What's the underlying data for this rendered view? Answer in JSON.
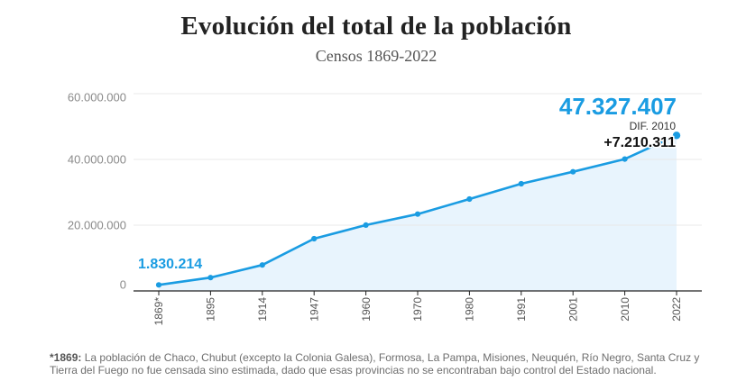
{
  "chart_data": {
    "type": "area",
    "title": "Evolución del total de la población",
    "subtitle": "Censos 1869-2022",
    "categories": [
      "1869*",
      "1895",
      "1914",
      "1947",
      "1960",
      "1970",
      "1980",
      "1991",
      "2001",
      "2010",
      "2022"
    ],
    "values": [
      1830214,
      4044911,
      7903662,
      15893827,
      20013793,
      23364431,
      27949480,
      32615528,
      36260130,
      40117096,
      47327407
    ],
    "ylim": [
      0,
      60000000
    ],
    "yticks": [
      0,
      20000000,
      40000000,
      60000000
    ],
    "ytick_labels": [
      "0",
      "20.000.000",
      "40.000.000",
      "60.000.000"
    ],
    "grid": true,
    "annotations": {
      "first_value": "1.830.214",
      "last_value": "47.327.407",
      "diff_label": "DIF. 2010",
      "diff_value": "+7.210.311"
    }
  },
  "footnote": {
    "label": "*1869:",
    "text": "La población de Chaco, Chubut (excepto la Colonia Galesa), Formosa, La Pampa, Misiones, Neuquén, Río Negro, Santa Cruz y Tierra del Fuego no fue censada sino estimada, dado que esas provincias no se encontraban bajo control del Estado nacional."
  },
  "colors": {
    "line": "#1a9ce2",
    "area": "#e8f4fd",
    "grid": "#e8e8e8",
    "axis": "#222222",
    "annotation": "#1a9ce2"
  }
}
